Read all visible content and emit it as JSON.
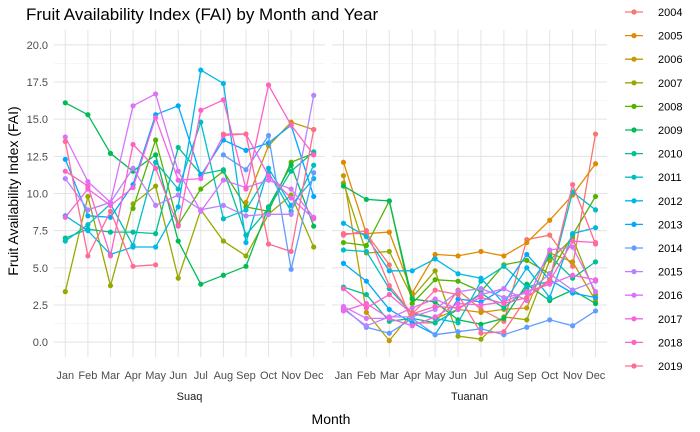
{
  "chart_data": {
    "type": "line",
    "title": "Fruit Availability Index (FAI) by Month and Year",
    "xlabel": "Month",
    "ylabel": "Fruit Availability Index (FAI)",
    "ylim": [
      -1,
      21
    ],
    "yticks": [
      "0.0",
      "2.5",
      "5.0",
      "7.5",
      "10.0",
      "12.5",
      "15.0",
      "17.5",
      "20.0"
    ],
    "grid": true,
    "legend_position": "right",
    "categories": [
      "Jan",
      "Feb",
      "Mar",
      "Apr",
      "May",
      "Jun",
      "Jul",
      "Aug",
      "Sep",
      "Oct",
      "Nov",
      "Dec"
    ],
    "facets": [
      "Suaq",
      "Tuanan"
    ],
    "series": [
      {
        "name": "2004",
        "color": "#F8766D",
        "values": {
          "Suaq": [
            null,
            null,
            null,
            null,
            null,
            null,
            null,
            null,
            null,
            null,
            null,
            null
          ],
          "Tuanan": [
            7.3,
            7.3,
            5.2,
            1.3,
            1.3,
            3.5,
            2.2,
            1.4,
            6.9,
            7.2,
            5.1,
            14.0
          ]
        }
      },
      {
        "name": "2005",
        "color": "#E38900",
        "values": {
          "Suaq": [
            null,
            null,
            null,
            null,
            null,
            null,
            null,
            null,
            null,
            null,
            null,
            null
          ],
          "Tuanan": [
            12.1,
            7.3,
            7.4,
            3.3,
            5.9,
            5.8,
            6.1,
            5.8,
            6.7,
            8.2,
            9.9,
            12.0
          ]
        }
      },
      {
        "name": "2006",
        "color": "#C49A00",
        "values": {
          "Suaq": [
            null,
            null,
            null,
            null,
            null,
            null,
            null,
            null,
            9.4,
            13.2,
            14.8,
            14.3
          ],
          "Tuanan": [
            11.2,
            2.0,
            0.1,
            2.0,
            1.6,
            2.2,
            2.0,
            2.2,
            2.3,
            6.0,
            5.4,
            2.8
          ]
        }
      },
      {
        "name": "2007",
        "color": "#99A800",
        "values": {
          "Suaq": [
            3.4,
            9.8,
            3.8,
            9.3,
            10.5,
            4.3,
            8.9,
            6.8,
            5.8,
            8.6,
            9.9,
            6.4
          ],
          "Tuanan": [
            10.7,
            6.0,
            6.1,
            3.0,
            4.8,
            0.4,
            0.2,
            1.7,
            1.5,
            5.5,
            7.0,
            3.2
          ]
        }
      },
      {
        "name": "2008",
        "color": "#53B400",
        "values": {
          "Suaq": [
            null,
            null,
            null,
            9.0,
            13.6,
            7.9,
            10.3,
            11.5,
            9.1,
            8.8,
            12.1,
            12.7
          ],
          "Tuanan": [
            6.7,
            6.5,
            9.5,
            2.6,
            4.2,
            4.1,
            3.4,
            5.2,
            5.5,
            4.6,
            7.2,
            9.8
          ]
        }
      },
      {
        "name": "2009",
        "color": "#00BC56",
        "values": {
          "Suaq": [
            16.1,
            15.3,
            12.7,
            11.5,
            12.6,
            6.8,
            3.9,
            4.5,
            5.1,
            9.1,
            11.9,
            7.8
          ],
          "Tuanan": [
            10.5,
            9.6,
            9.5,
            2.9,
            2.7,
            1.5,
            1.2,
            1.6,
            3.9,
            2.8,
            3.5,
            2.6
          ]
        }
      },
      {
        "name": "2010",
        "color": "#00C094",
        "values": {
          "Suaq": [
            7.0,
            7.6,
            7.4,
            7.4,
            7.3,
            13.1,
            11.3,
            11.6,
            7.2,
            9.0,
            11.5,
            12.8
          ],
          "Tuanan": [
            3.7,
            3.2,
            1.4,
            1.6,
            1.3,
            2.2,
            3.3,
            2.3,
            3.6,
            5.8,
            4.3,
            5.4
          ]
        }
      },
      {
        "name": "2011",
        "color": "#00BFC4",
        "values": {
          "Suaq": [
            6.8,
            7.9,
            9.3,
            6.5,
            12.1,
            10.3,
            14.8,
            8.3,
            8.9,
            11.4,
            8.8,
            11.9
          ],
          "Tuanan": [
            6.2,
            6.1,
            3.6,
            1.9,
            1.6,
            1.3,
            4.1,
            5.1,
            3.7,
            4.1,
            10.1,
            8.9
          ]
        }
      },
      {
        "name": "2012",
        "color": "#00B8E7",
        "values": {
          "Suaq": [
            8.5,
            7.5,
            5.9,
            6.4,
            6.4,
            9.1,
            18.3,
            17.4,
            6.7,
            11.7,
            9.2,
            11.0
          ],
          "Tuanan": [
            8.0,
            7.1,
            4.8,
            4.8,
            5.6,
            4.6,
            4.3,
            2.6,
            5.0,
            3.0,
            7.3,
            7.7
          ]
        }
      },
      {
        "name": "2013",
        "color": "#00A9FF",
        "values": {
          "Suaq": [
            12.3,
            8.5,
            8.4,
            10.6,
            15.3,
            15.9,
            11.2,
            13.6,
            12.9,
            13.4,
            14.6,
            9.8
          ],
          "Tuanan": [
            5.3,
            4.1,
            2.2,
            1.3,
            0.5,
            2.9,
            2.7,
            3.6,
            5.9,
            4.2,
            3.3,
            3.0
          ]
        }
      },
      {
        "name": "2014",
        "color": "#619CFF",
        "values": {
          "Suaq": [
            null,
            null,
            null,
            null,
            null,
            null,
            null,
            12.6,
            11.6,
            13.9,
            4.9,
            11.4
          ],
          "Tuanan": [
            2.3,
            1.0,
            0.6,
            1.6,
            0.5,
            0.7,
            0.9,
            0.5,
            1.0,
            1.5,
            1.1,
            2.1
          ]
        }
      },
      {
        "name": "2015",
        "color": "#B983FF",
        "values": {
          "Suaq": [
            11.0,
            8.9,
            9.4,
            11.7,
            9.2,
            9.9,
            8.9,
            9.2,
            8.5,
            8.6,
            8.6,
            16.6
          ],
          "Tuanan": [
            2.2,
            1.1,
            1.7,
            1.7,
            2.2,
            3.4,
            3.6,
            3.0,
            3.3,
            4.6,
            3.5,
            4.1
          ]
        }
      },
      {
        "name": "2016",
        "color": "#DB72FB",
        "values": {
          "Suaq": [
            13.8,
            10.8,
            9.4,
            15.9,
            16.7,
            11.5,
            8.8,
            10.9,
            10.4,
            10.9,
            10.3,
            8.4
          ],
          "Tuanan": [
            2.4,
            1.6,
            1.6,
            2.3,
            2.9,
            2.2,
            3.2,
            3.6,
            2.8,
            6.2,
            6.4,
            3.4
          ]
        }
      },
      {
        "name": "2017",
        "color": "#F564E3",
        "values": {
          "Suaq": [
            8.4,
            10.3,
            9.2,
            10.4,
            15.1,
            10.9,
            11.0,
            13.9,
            14.0,
            11.2,
            9.7,
            8.3
          ],
          "Tuanan": [
            2.1,
            2.6,
            1.6,
            1.1,
            1.7,
            2.6,
            2.5,
            2.7,
            3.4,
            3.9,
            4.5,
            4.2
          ]
        }
      },
      {
        "name": "2018",
        "color": "#FF61C3",
        "values": {
          "Suaq": [
            11.5,
            10.5,
            5.8,
            13.3,
            11.7,
            7.8,
            15.6,
            16.3,
            10.3,
            17.3,
            14.6,
            12.6
          ],
          "Tuanan": [
            3.6,
            2.3,
            3.2,
            1.9,
            2.4,
            2.3,
            3.0,
            2.6,
            3.0,
            4.1,
            6.8,
            6.7
          ]
        }
      },
      {
        "name": "2019",
        "color": "#FF6C91",
        "values": {
          "Suaq": [
            13.5,
            5.8,
            8.8,
            5.1,
            5.2,
            null,
            null,
            14.0,
            14.0,
            6.6,
            6.1,
            14.3
          ],
          "Tuanan": [
            7.2,
            7.5,
            3.8,
            1.9,
            3.5,
            3.2,
            0.6,
            0.7,
            3.0,
            4.2,
            10.6,
            6.6
          ]
        }
      }
    ]
  }
}
